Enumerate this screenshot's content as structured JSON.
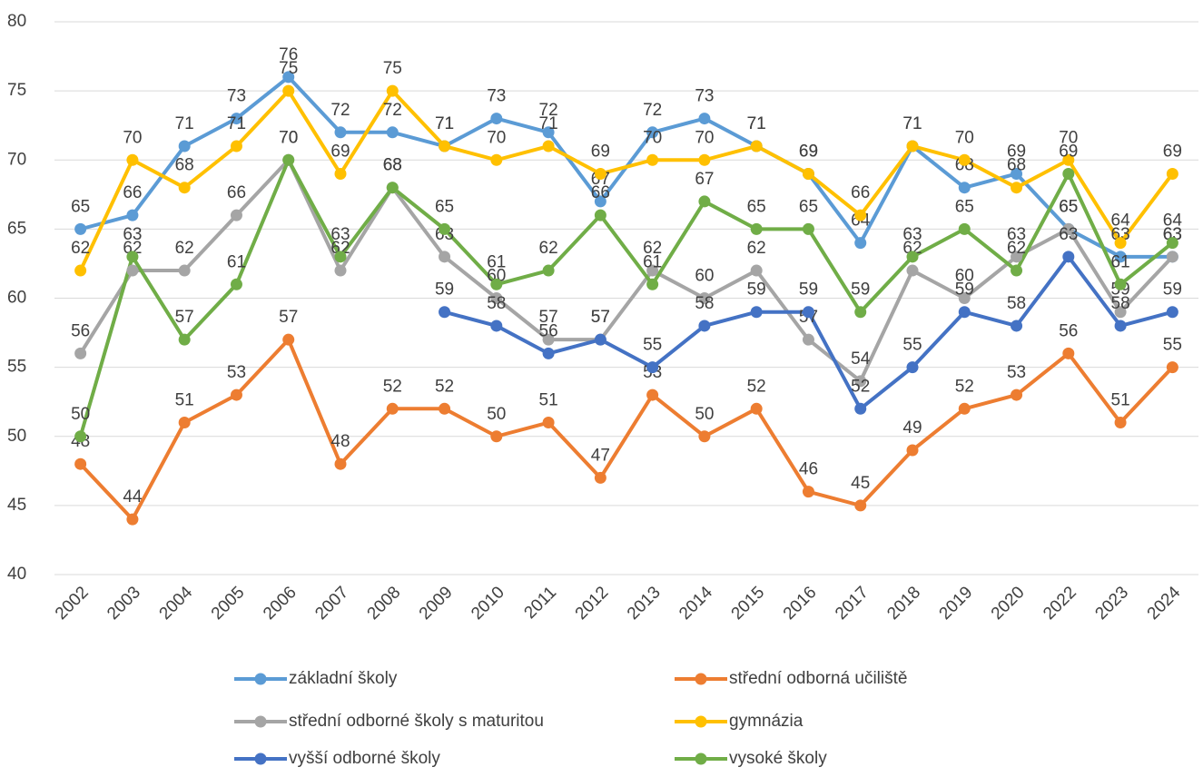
{
  "chart_data": {
    "type": "line",
    "categories": [
      "2002",
      "2003",
      "2004",
      "2005",
      "2006",
      "2007",
      "2008",
      "2009",
      "2010",
      "2011",
      "2012",
      "2013",
      "2014",
      "2015",
      "2016",
      "2017",
      "2018",
      "2019",
      "2020",
      "2022",
      "2023",
      "2024"
    ],
    "series": [
      {
        "name": "základní školy",
        "color": "#5b9bd5",
        "values": [
          65,
          66,
          71,
          73,
          76,
          72,
          72,
          71,
          73,
          72,
          67,
          72,
          73,
          71,
          69,
          64,
          71,
          68,
          69,
          65,
          63,
          63
        ]
      },
      {
        "name": "střední odborná učiliště",
        "color": "#ed7d31",
        "values": [
          48,
          44,
          51,
          53,
          57,
          48,
          52,
          52,
          50,
          51,
          47,
          53,
          50,
          52,
          46,
          45,
          49,
          52,
          53,
          56,
          51,
          55
        ]
      },
      {
        "name": "střední odborné školy s maturitou",
        "color": "#a5a5a5",
        "values": [
          56,
          62,
          62,
          66,
          70,
          62,
          68,
          63,
          60,
          57,
          57,
          62,
          60,
          62,
          57,
          54,
          62,
          60,
          63,
          65,
          59,
          63
        ]
      },
      {
        "name": "gymnázia",
        "color": "#ffc000",
        "values": [
          62,
          70,
          68,
          71,
          75,
          69,
          75,
          71,
          70,
          71,
          69,
          70,
          70,
          71,
          69,
          66,
          71,
          70,
          68,
          70,
          64,
          69
        ]
      },
      {
        "name": "vyšší odborné školy",
        "color": "#4472c4",
        "values": [
          null,
          null,
          null,
          null,
          null,
          null,
          null,
          59,
          58,
          56,
          57,
          55,
          58,
          59,
          59,
          52,
          55,
          59,
          58,
          63,
          58,
          59
        ]
      },
      {
        "name": "vysoké školy",
        "color": "#70ad47",
        "values": [
          50,
          63,
          57,
          61,
          70,
          63,
          68,
          65,
          61,
          62,
          66,
          61,
          67,
          65,
          65,
          59,
          63,
          65,
          62,
          69,
          61,
          64
        ]
      }
    ],
    "ylim": [
      40,
      80
    ],
    "yticks": [
      40,
      45,
      50,
      55,
      60,
      65,
      70,
      75,
      80
    ],
    "grid": true
  }
}
